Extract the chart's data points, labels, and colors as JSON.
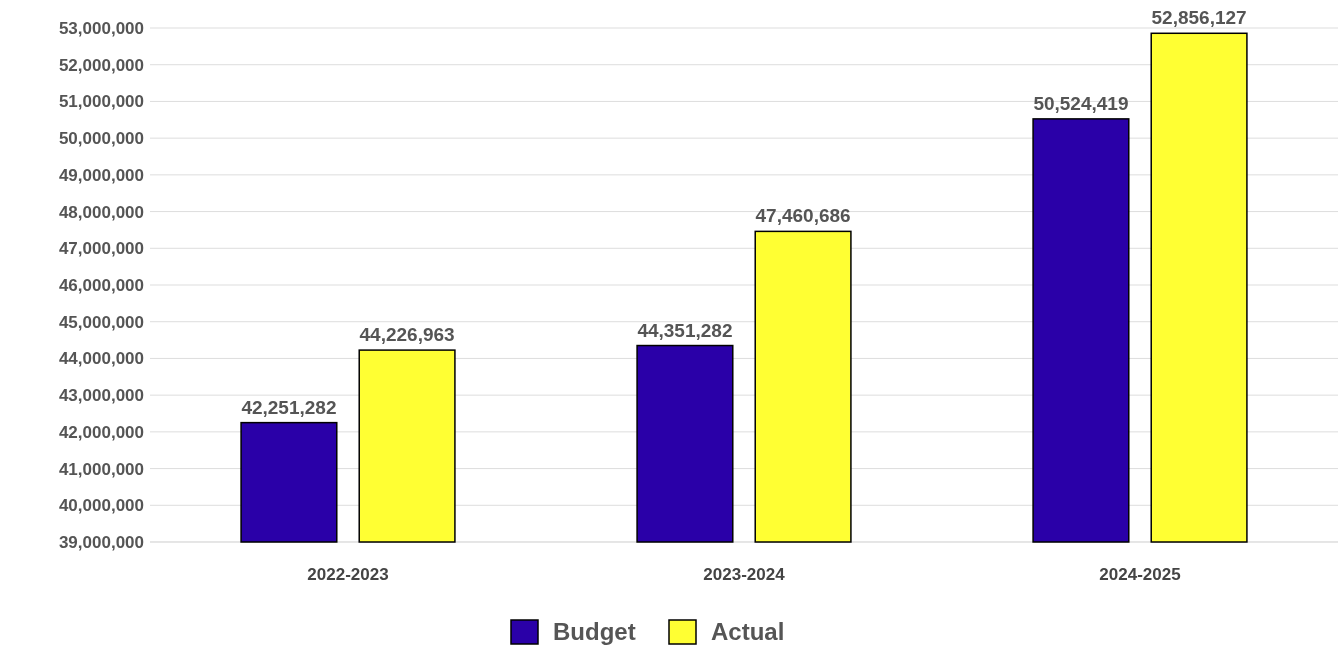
{
  "chart_data": {
    "type": "bar",
    "categories": [
      "2022-2023",
      "2023-2024",
      "2024-2025"
    ],
    "series": [
      {
        "name": "Budget",
        "color": "#2a00a8",
        "values": [
          42251282,
          44351282,
          50524419
        ],
        "value_labels": [
          "42,251,282",
          "44,351,282",
          "50,524,419"
        ]
      },
      {
        "name": "Actual",
        "color": "#ffff33",
        "values": [
          44226963,
          47460686,
          52856127
        ],
        "value_labels": [
          "44,226,963",
          "47,460,686",
          "52,856,127"
        ]
      }
    ],
    "ylim": [
      39000000,
      53000000
    ],
    "yticks": [
      {
        "value": 39000000,
        "label": "39,000,000"
      },
      {
        "value": 40000000,
        "label": "40,000,000"
      },
      {
        "value": 41000000,
        "label": "41,000,000"
      },
      {
        "value": 42000000,
        "label": "42,000,000"
      },
      {
        "value": 43000000,
        "label": "43,000,000"
      },
      {
        "value": 44000000,
        "label": "44,000,000"
      },
      {
        "value": 45000000,
        "label": "45,000,000"
      },
      {
        "value": 46000000,
        "label": "46,000,000"
      },
      {
        "value": 47000000,
        "label": "47,000,000"
      },
      {
        "value": 48000000,
        "label": "48,000,000"
      },
      {
        "value": 49000000,
        "label": "49,000,000"
      },
      {
        "value": 50000000,
        "label": "50,000,000"
      },
      {
        "value": 51000000,
        "label": "51,000,000"
      },
      {
        "value": 52000000,
        "label": "52,000,000"
      },
      {
        "value": 53000000,
        "label": "53,000,000"
      }
    ],
    "grid": "y",
    "legend": "bottom"
  }
}
